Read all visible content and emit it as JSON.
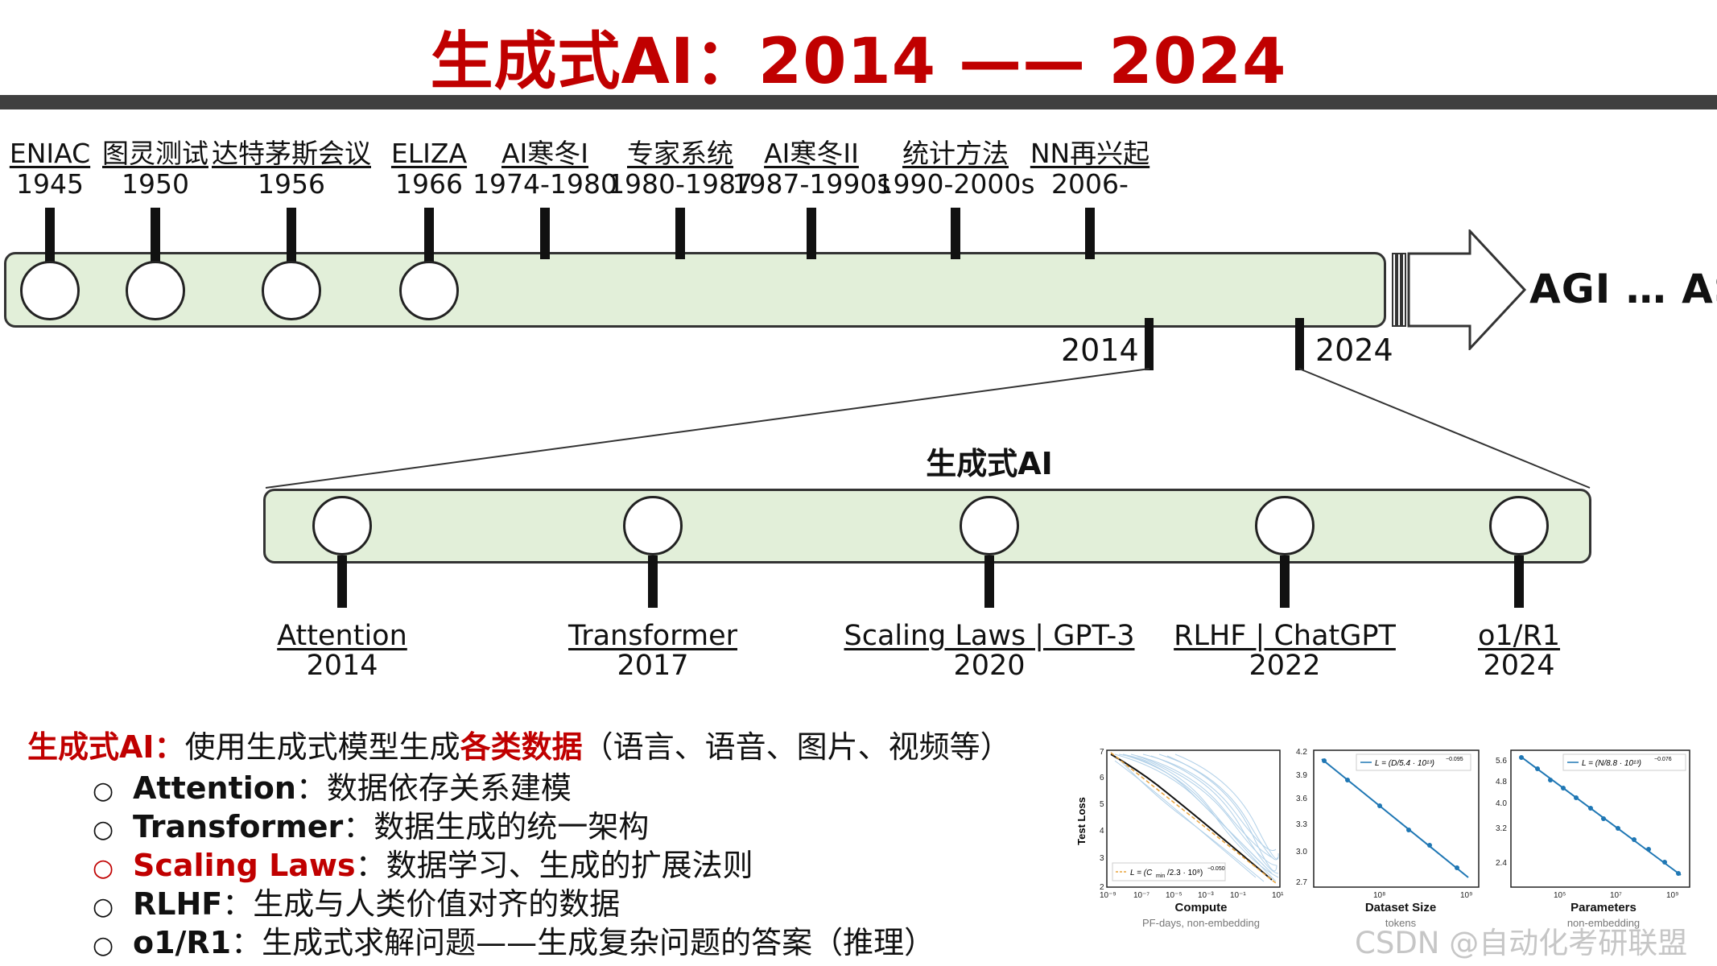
{
  "title": "生成式AI：2014 —— 2024",
  "timeline": {
    "events": [
      {
        "name": "ENIAC",
        "year": "1945",
        "milestone": true
      },
      {
        "name": "图灵测试",
        "year": "1950",
        "milestone": true
      },
      {
        "name": "达特茅斯会议",
        "year": "1956",
        "milestone": true
      },
      {
        "name": "ELIZA",
        "year": "1966",
        "milestone": true
      },
      {
        "name": "AI寒冬I",
        "year": "1974-1980",
        "milestone": false
      },
      {
        "name": "专家系统",
        "year": "1980-1987",
        "milestone": false
      },
      {
        "name": "AI寒冬II",
        "year": "1987-1990s",
        "milestone": false
      },
      {
        "name": "统计方法",
        "year": "1990-2000s",
        "milestone": false
      },
      {
        "name": "NN再兴起",
        "year": "2006-",
        "milestone": false
      }
    ],
    "range_start": "2014",
    "range_end": "2024",
    "arrow_label": "AGI … ASI"
  },
  "genai": {
    "title": "生成式AI",
    "events": [
      {
        "name": "Attention",
        "year": "2014"
      },
      {
        "name": "Transformer",
        "year": "2017"
      },
      {
        "name": "Scaling Laws | GPT-3",
        "year": "2020"
      },
      {
        "name": "RLHF | ChatGPT",
        "year": "2022"
      },
      {
        "name": "o1/R1",
        "year": "2024"
      }
    ]
  },
  "intro": {
    "label": "生成式AI",
    "colon": "：",
    "pre": "使用生成式模型生成",
    "highlight": "各类数据",
    "post": "（语言、语音、图片、视频等）"
  },
  "bullets": [
    {
      "symbol": "○",
      "term": "Attention",
      "desc": "：数据依存关系建模",
      "highlight": false
    },
    {
      "symbol": "○",
      "term": "Transformer",
      "desc": "：数据生成的统一架构",
      "highlight": false
    },
    {
      "symbol": "○",
      "term": "Scaling Laws",
      "desc": "：数据学习、生成的扩展法则",
      "highlight": true
    },
    {
      "symbol": "○",
      "term": "RLHF",
      "desc": "：生成与人类价值对齐的数据",
      "highlight": false
    },
    {
      "symbol": "○",
      "term": "o1/R1",
      "desc": "：生成式求解问题——生成复杂问题的答案（推理）",
      "highlight": false
    }
  ],
  "plots": {
    "ylabel": "Test Loss",
    "panels": [
      {
        "xlabel": "Compute",
        "sublabel": "PF-days, non-embedding",
        "legend": "L = (Cmin/2.3 · 10⁸)^−0.050",
        "xticks": [
          "10⁻⁹",
          "10⁻⁷",
          "10⁻⁵",
          "10⁻³",
          "10⁻¹",
          "10¹"
        ],
        "yticks": [
          "2",
          "3",
          "4",
          "5",
          "6",
          "7"
        ]
      },
      {
        "xlabel": "Dataset Size",
        "sublabel": "tokens",
        "legend": "L = (D/5.4 · 10¹³)^−0.095",
        "xticks": [
          "10⁸",
          "10⁹"
        ],
        "yticks": [
          "2.7",
          "3.0",
          "3.3",
          "3.6",
          "3.9",
          "4.2"
        ]
      },
      {
        "xlabel": "Parameters",
        "sublabel": "non-embedding",
        "legend": "L = (N/8.8 · 10¹³)^−0.076",
        "xticks": [
          "10⁵",
          "10⁷",
          "10⁹"
        ],
        "yticks": [
          "2.4",
          "3.2",
          "4.0",
          "4.8",
          "5.6"
        ]
      }
    ]
  },
  "watermark": "CSDN @自动化考研联盟",
  "colors": {
    "accent_red": "#c00000",
    "bar_fill": "#e2efd9",
    "plot_line": "#1f77b4",
    "fit_line": "#e8a33c"
  }
}
